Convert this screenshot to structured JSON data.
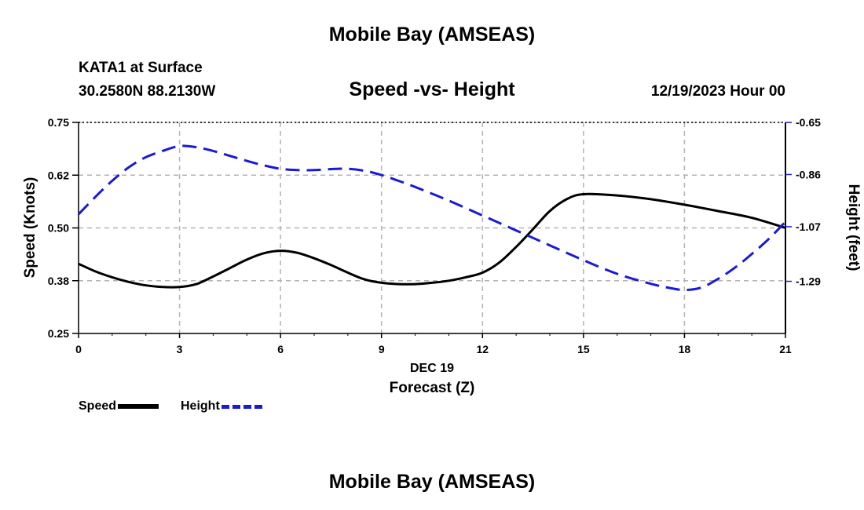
{
  "header": {
    "title": "Mobile Bay (AMSEAS)",
    "station": "KATA1 at Surface",
    "coords": "30.2580N  88.2130W",
    "chart_title": "Speed -vs- Height",
    "run_time": "12/19/2023 Hour 00"
  },
  "footer": {
    "title": "Mobile Bay (AMSEAS)"
  },
  "legend": {
    "speed_label": "Speed",
    "height_label": "Height"
  },
  "colors": {
    "speed": "#000000",
    "height": "#1a1ad6",
    "grid": "#b4b4b4"
  },
  "chart_data": {
    "type": "line",
    "title": "Speed -vs- Height",
    "xlabel": "Forecast (Z)",
    "xlabel_date": "DEC 19",
    "ylabel_left": "Speed (Knots)",
    "ylabel_right": "Height (feet)",
    "x_ticks": [
      0,
      3,
      6,
      9,
      12,
      15,
      18,
      21
    ],
    "x_tick_labels": [
      "0",
      "3",
      "6",
      "9",
      "12",
      "15",
      "18",
      "21"
    ],
    "xlim": [
      0,
      21
    ],
    "ylim_left": [
      0.25,
      0.75
    ],
    "y_ticks_left": [
      0.25,
      0.375,
      0.5,
      0.625,
      0.75
    ],
    "y_tick_labels_left": [
      "0.25",
      "0.38",
      "0.50",
      "0.62",
      "0.75"
    ],
    "ylim_right": [
      -1.5,
      -0.65
    ],
    "y_ticks_right": [
      -0.65,
      -0.86,
      -1.07,
      -1.29
    ],
    "y_tick_labels_right": [
      "-0.65",
      "-0.86",
      "-1.07",
      "-1.29"
    ],
    "grid": true,
    "series": [
      {
        "name": "Speed",
        "axis": "left",
        "style": "solid",
        "x": [
          0,
          0.5,
          1,
          1.5,
          2,
          2.5,
          3,
          3.5,
          4,
          4.5,
          5,
          5.5,
          6,
          6.5,
          7,
          7.5,
          8,
          8.5,
          9,
          9.5,
          10,
          10.5,
          11,
          11.5,
          12,
          12.5,
          13,
          13.5,
          14,
          14.5,
          15,
          16,
          17,
          18,
          19,
          20,
          21
        ],
        "values": [
          0.415,
          0.397,
          0.383,
          0.372,
          0.364,
          0.36,
          0.36,
          0.367,
          0.385,
          0.405,
          0.425,
          0.44,
          0.446,
          0.441,
          0.428,
          0.412,
          0.394,
          0.378,
          0.37,
          0.367,
          0.367,
          0.37,
          0.375,
          0.383,
          0.394,
          0.418,
          0.455,
          0.497,
          0.54,
          0.568,
          0.58,
          0.577,
          0.568,
          0.555,
          0.54,
          0.524,
          0.5
        ]
      },
      {
        "name": "Height",
        "axis": "right",
        "style": "dashed",
        "x": [
          0,
          0.5,
          1,
          1.5,
          2,
          2.5,
          3,
          3.5,
          4,
          4.5,
          5,
          5.5,
          6,
          6.5,
          7,
          7.5,
          8,
          8.5,
          9,
          9.5,
          10,
          11,
          12,
          13,
          14,
          15,
          16,
          17,
          17.5,
          18,
          18.5,
          19,
          19.5,
          20,
          20.5,
          21
        ],
        "values": [
          -1.02,
          -0.95,
          -0.885,
          -0.83,
          -0.79,
          -0.765,
          -0.745,
          -0.75,
          -0.765,
          -0.785,
          -0.805,
          -0.823,
          -0.837,
          -0.842,
          -0.842,
          -0.838,
          -0.837,
          -0.845,
          -0.862,
          -0.885,
          -0.91,
          -0.965,
          -1.025,
          -1.085,
          -1.145,
          -1.205,
          -1.26,
          -1.3,
          -1.315,
          -1.325,
          -1.315,
          -1.28,
          -1.235,
          -1.18,
          -1.12,
          -1.05
        ]
      }
    ]
  }
}
